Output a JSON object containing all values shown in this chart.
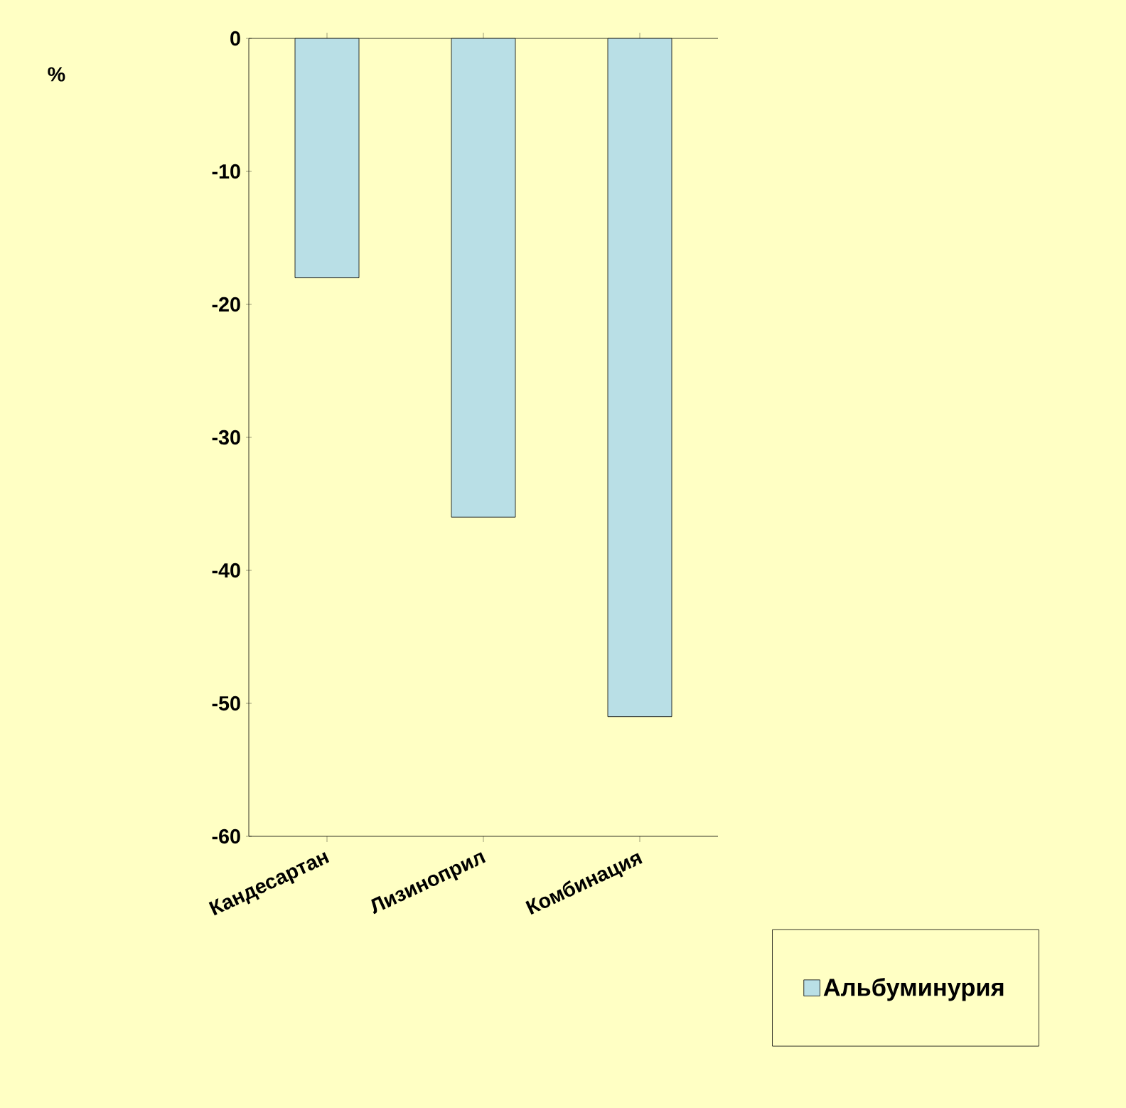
{
  "chart_data": {
    "type": "bar",
    "annotations": [
      "%"
    ],
    "categories": [
      "Кандесартан",
      "Лизиноприл",
      "Комбинация"
    ],
    "series": [
      {
        "name": "Альбуминурия",
        "color": "#b9dfe6",
        "values": [
          -18,
          -36,
          -51
        ]
      }
    ],
    "ylim": [
      -60,
      0
    ],
    "yticks": [
      -60,
      -50,
      -40,
      -30,
      -20,
      -10,
      0
    ],
    "legend": "bottom right"
  }
}
